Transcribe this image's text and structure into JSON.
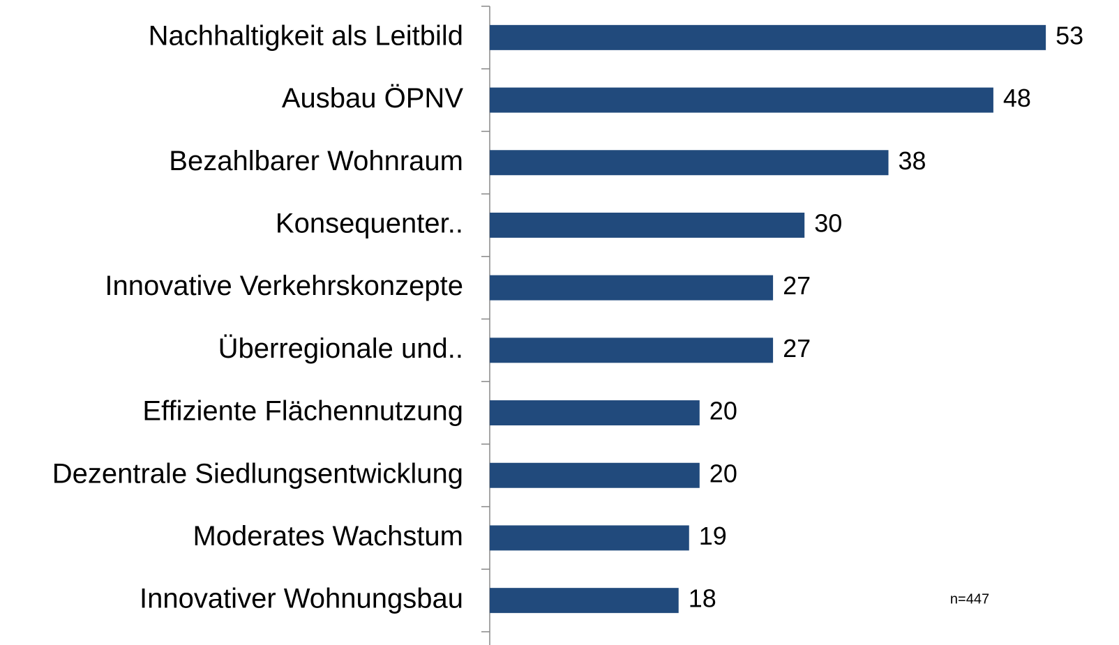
{
  "chart_data": {
    "type": "bar",
    "orientation": "horizontal",
    "categories": [
      "Nachhaltigkeit als Leitbild",
      "Ausbau ÖPNV",
      "Bezahlbarer Wohnraum",
      "Konsequenter..",
      "Innovative Verkehrskonzepte",
      "Überregionale und..",
      "Effiziente Flächennutzung",
      "Dezentrale Siedlungsentwicklung",
      "Moderates Wachstum",
      "Innovativer Wohnungsbau"
    ],
    "values": [
      53,
      48,
      38,
      30,
      27,
      27,
      20,
      20,
      19,
      18
    ],
    "color": "#214a7c",
    "annotation": "n=447"
  }
}
